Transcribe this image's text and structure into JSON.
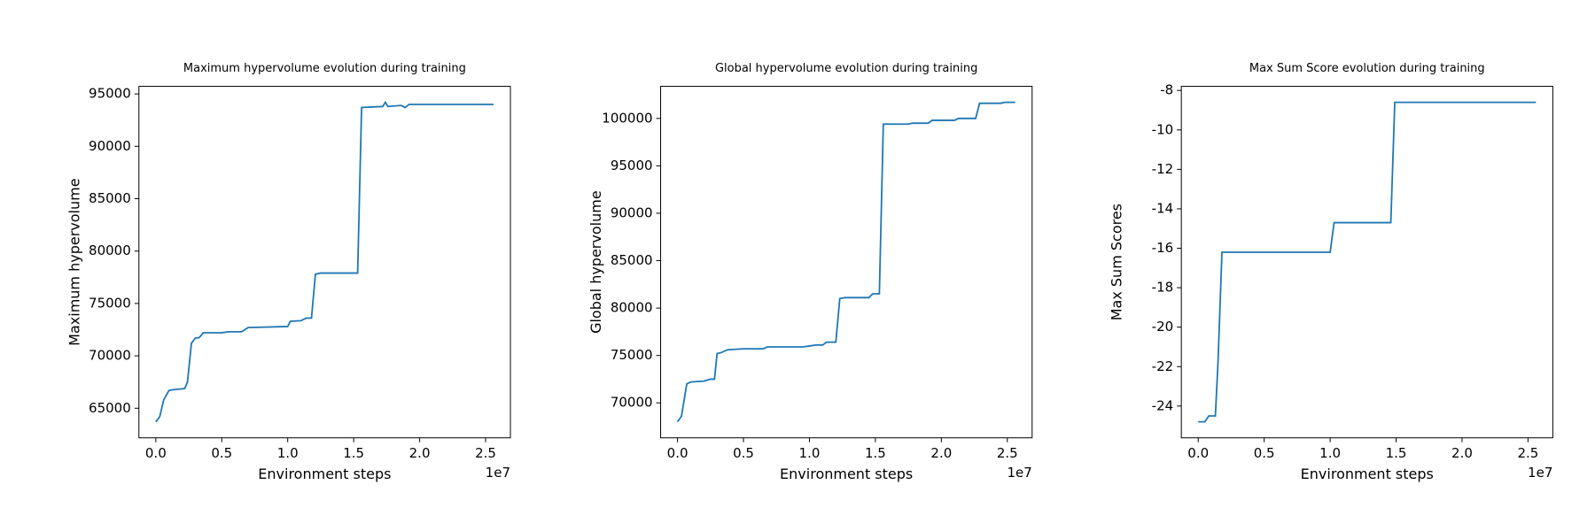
{
  "chart_data": [
    {
      "type": "line",
      "title": "Maximum hypervolume evolution during training",
      "xlabel": "Environment steps",
      "ylabel": "Maximum hypervolume",
      "x_offset_label": "1e7",
      "xlim": [
        -1280000,
        26880000
      ],
      "xticks": [
        {
          "value": 0,
          "label": "0.0"
        },
        {
          "value": 5000000,
          "label": "0.5"
        },
        {
          "value": 10000000,
          "label": "1.0"
        },
        {
          "value": 15000000,
          "label": "1.5"
        },
        {
          "value": 20000000,
          "label": "2.0"
        },
        {
          "value": 25000000,
          "label": "2.5"
        }
      ],
      "ylim": [
        62175,
        95725
      ],
      "yticks": [
        65000,
        70000,
        75000,
        80000,
        85000,
        90000,
        95000
      ],
      "grid": false,
      "x": [
        0,
        300000,
        600000,
        1000000,
        1500000,
        2000000,
        2200000,
        2400000,
        2700000,
        3000000,
        3300000,
        3600000,
        5000000,
        5500000,
        6500000,
        7000000,
        10000000,
        10200000,
        11000000,
        11400000,
        11800000,
        12100000,
        12500000,
        15300000,
        15600000,
        17200000,
        17400000,
        17600000,
        18600000,
        18900000,
        19200000,
        25600000
      ],
      "series": [
        {
          "name": "Maximum hypervolume",
          "color": "#1f77b4",
          "values": [
            63700,
            64200,
            65800,
            66700,
            66800,
            66850,
            66900,
            67500,
            71200,
            71700,
            71750,
            72200,
            72200,
            72300,
            72300,
            72700,
            72800,
            73300,
            73350,
            73600,
            73600,
            77800,
            77900,
            77900,
            93700,
            93800,
            94200,
            93800,
            93900,
            93700,
            94000,
            94000
          ]
        }
      ]
    },
    {
      "type": "line",
      "title": "Global hypervolume evolution during training",
      "xlabel": "Environment steps",
      "ylabel": "Global hypervolume",
      "x_offset_label": "1e7",
      "xlim": [
        -1280000,
        26880000
      ],
      "xticks": [
        {
          "value": 0,
          "label": "0.0"
        },
        {
          "value": 5000000,
          "label": "0.5"
        },
        {
          "value": 10000000,
          "label": "1.0"
        },
        {
          "value": 15000000,
          "label": "1.5"
        },
        {
          "value": 20000000,
          "label": "2.0"
        },
        {
          "value": 25000000,
          "label": "2.5"
        }
      ],
      "ylim": [
        66315,
        103385
      ],
      "yticks": [
        70000,
        75000,
        80000,
        85000,
        90000,
        95000,
        100000
      ],
      "grid": false,
      "x": [
        0,
        300000,
        700000,
        1000000,
        2000000,
        2500000,
        2800000,
        3000000,
        3300000,
        3800000,
        5000000,
        6500000,
        6800000,
        9500000,
        10000000,
        10500000,
        11000000,
        11300000,
        12000000,
        12300000,
        12700000,
        14500000,
        14800000,
        15300000,
        15600000,
        17500000,
        17800000,
        19000000,
        19300000,
        21000000,
        21300000,
        22600000,
        22900000,
        24500000,
        24800000,
        25600000
      ],
      "series": [
        {
          "name": "Global hypervolume",
          "color": "#1f77b4",
          "values": [
            68000,
            68600,
            72000,
            72200,
            72300,
            72500,
            72500,
            75200,
            75300,
            75600,
            75700,
            75700,
            75900,
            75900,
            76000,
            76100,
            76100,
            76400,
            76400,
            81000,
            81100,
            81100,
            81500,
            81500,
            99400,
            99400,
            99500,
            99500,
            99800,
            99800,
            100000,
            100000,
            101600,
            101600,
            101700,
            101700
          ]
        }
      ]
    },
    {
      "type": "line",
      "title": "Max Sum Score evolution during training",
      "xlabel": "Environment steps",
      "ylabel": "Max Sum Scores",
      "x_offset_label": "1e7",
      "xlim": [
        -1280000,
        26880000
      ],
      "xticks": [
        {
          "value": 0,
          "label": "0.0"
        },
        {
          "value": 5000000,
          "label": "0.5"
        },
        {
          "value": 10000000,
          "label": "1.0"
        },
        {
          "value": 15000000,
          "label": "1.5"
        },
        {
          "value": 20000000,
          "label": "2.0"
        },
        {
          "value": 25000000,
          "label": "2.5"
        }
      ],
      "ylim": [
        -25.61,
        -7.79
      ],
      "yticks": [
        -24,
        -22,
        -20,
        -18,
        -16,
        -14,
        -12,
        -10,
        -8
      ],
      "grid": false,
      "x": [
        0,
        500000,
        800000,
        1300000,
        1500000,
        1800000,
        10000000,
        10300000,
        14600000,
        14900000,
        25600000
      ],
      "series": [
        {
          "name": "Max Sum Scores",
          "color": "#1f77b4",
          "values": [
            -24.8,
            -24.8,
            -24.5,
            -24.5,
            -21.8,
            -16.2,
            -16.2,
            -14.7,
            -14.7,
            -8.6,
            -8.6
          ]
        }
      ]
    }
  ]
}
